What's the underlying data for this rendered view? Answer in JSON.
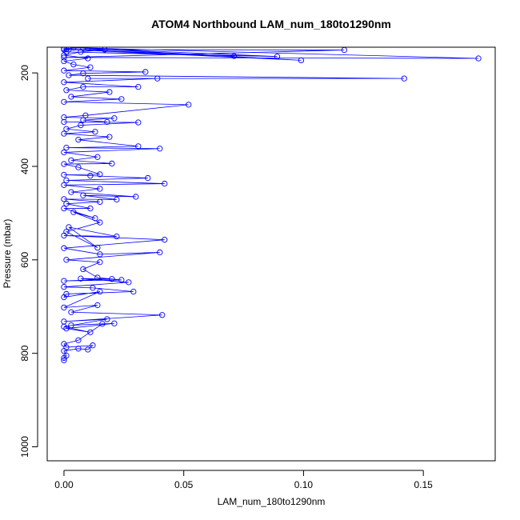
{
  "chart_data": {
    "type": "line",
    "title": "ATOM4 Northbound LAM_num_180to1290nm",
    "xlabel": "LAM_num_180to1290nm",
    "ylabel": "Pressure (mbar)",
    "xlim": [
      -0.007,
      0.18
    ],
    "ylim": [
      1030,
      145
    ],
    "y_reversed": true,
    "xticks": [
      0.0,
      0.05,
      0.1,
      0.15
    ],
    "xtick_labels": [
      "0.00",
      "0.05",
      "0.10",
      "0.15"
    ],
    "yticks": [
      200,
      400,
      600,
      800,
      1000
    ],
    "ytick_labels": [
      "200",
      "400",
      "600",
      "800",
      "1000"
    ],
    "series_color": "#0000ff",
    "marker": "open-circle",
    "grid": false,
    "series": [
      {
        "points": [
          [
            0.0,
            815
          ],
          [
            0.0,
            810
          ],
          [
            0.001,
            805
          ],
          [
            0.0,
            795
          ],
          [
            0.006,
            790
          ],
          [
            0.01,
            792
          ],
          [
            0.012,
            783
          ],
          [
            0.001,
            787
          ],
          [
            0.0,
            780
          ],
          [
            0.006,
            772
          ],
          [
            0.016,
            737
          ],
          [
            0.003,
            740
          ],
          [
            0.021,
            736
          ],
          [
            0.001,
            747
          ],
          [
            0.011,
            755
          ],
          [
            0.0,
            743
          ],
          [
            0.018,
            727
          ],
          [
            0.0,
            732
          ],
          [
            0.041,
            718
          ],
          [
            0.003,
            712
          ],
          [
            0.014,
            697
          ],
          [
            0.0,
            702
          ],
          [
            0.015,
            668
          ],
          [
            0.0,
            680
          ],
          [
            0.001,
            673
          ],
          [
            0.029,
            668
          ],
          [
            0.012,
            660
          ],
          [
            0.0,
            658
          ],
          [
            0.027,
            648
          ],
          [
            0.007,
            640
          ],
          [
            0.02,
            641
          ],
          [
            0.0,
            645
          ],
          [
            0.024,
            643
          ],
          [
            0.014,
            638
          ],
          [
            0.008,
            620
          ],
          [
            0.015,
            605
          ],
          [
            0.001,
            600
          ],
          [
            0.04,
            584
          ],
          [
            0.015,
            588
          ],
          [
            0.0,
            575
          ],
          [
            0.042,
            557
          ],
          [
            0.0,
            548
          ],
          [
            0.022,
            550
          ],
          [
            0.002,
            530
          ],
          [
            0.014,
            574
          ],
          [
            0.001,
            540
          ],
          [
            0.015,
            520
          ],
          [
            0.004,
            498
          ],
          [
            0.013,
            511
          ],
          [
            0.0,
            490
          ],
          [
            0.011,
            490
          ],
          [
            0.001,
            480
          ],
          [
            0.015,
            476
          ],
          [
            0.0,
            470
          ],
          [
            0.022,
            471
          ],
          [
            0.008,
            462
          ],
          [
            0.03,
            465
          ],
          [
            0.003,
            455
          ],
          [
            0.015,
            448
          ],
          [
            0.0,
            440
          ],
          [
            0.042,
            437
          ],
          [
            0.001,
            430
          ],
          [
            0.035,
            425
          ],
          [
            0.011,
            420
          ],
          [
            0.0,
            418
          ],
          [
            0.015,
            417
          ],
          [
            0.006,
            402
          ],
          [
            0.0,
            395
          ],
          [
            0.02,
            394
          ],
          [
            0.003,
            387
          ],
          [
            0.014,
            380
          ],
          [
            0.0,
            370
          ],
          [
            0.04,
            362
          ],
          [
            0.001,
            360
          ],
          [
            0.031,
            357
          ],
          [
            0.006,
            343
          ],
          [
            0.019,
            337
          ],
          [
            0.0,
            330
          ],
          [
            0.013,
            326
          ],
          [
            0.001,
            320
          ],
          [
            0.007,
            312
          ],
          [
            0.031,
            306
          ],
          [
            0.0,
            305
          ],
          [
            0.018,
            305
          ],
          [
            0.008,
            301
          ],
          [
            0.021,
            297
          ],
          [
            0.0,
            295
          ],
          [
            0.009,
            291
          ],
          [
            0.052,
            268
          ],
          [
            0.0,
            262
          ],
          [
            0.024,
            256
          ],
          [
            0.003,
            251
          ],
          [
            0.019,
            241
          ],
          [
            0.001,
            237
          ],
          [
            0.008,
            230
          ],
          [
            0.031,
            230
          ],
          [
            0.0,
            220
          ],
          [
            0.039,
            212
          ],
          [
            0.01,
            212
          ],
          [
            0.142,
            212
          ],
          [
            0.002,
            205
          ],
          [
            0.008,
            201
          ],
          [
            0.034,
            198
          ],
          [
            0.0,
            195
          ],
          [
            0.011,
            188
          ],
          [
            0.004,
            182
          ],
          [
            0.0,
            175
          ],
          [
            0.01,
            169
          ],
          [
            0.0,
            162
          ],
          [
            0.007,
            155
          ],
          [
            0.017,
            150
          ],
          [
            0.0,
            150
          ],
          [
            0.004,
            146
          ],
          [
            0.173,
            169
          ],
          [
            0.0,
            167
          ],
          [
            0.117,
            151
          ],
          [
            0.002,
            150
          ],
          [
            0.099,
            173
          ],
          [
            0.008,
            147
          ],
          [
            0.089,
            165
          ],
          [
            0.001,
            155
          ],
          [
            0.071,
            164
          ],
          [
            0.001,
            149
          ],
          [
            0.0,
            148
          ],
          [
            0.01,
            146
          ]
        ]
      }
    ]
  }
}
